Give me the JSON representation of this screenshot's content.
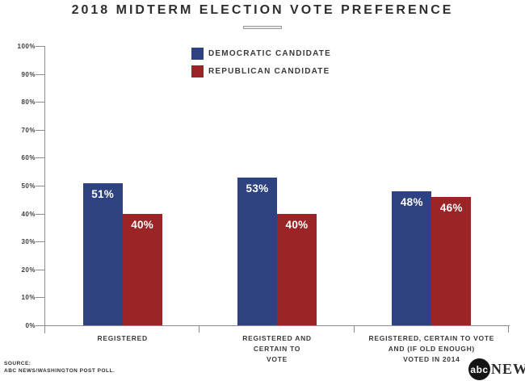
{
  "title": "2018 MIDTERM ELECTION VOTE PREFERENCE",
  "colors": {
    "democrat_blue": "#2e4181",
    "republican_red": "#9a2426",
    "axis_gray": "#8c8c8c",
    "text_dark": "#3a3a3a"
  },
  "legend": {
    "items": [
      {
        "label": "DEMOCRATIC CANDIDATE",
        "color": "#2e4181"
      },
      {
        "label": "REPUBLICAN CANDIDATE",
        "color": "#9a2426"
      }
    ]
  },
  "chart_data": {
    "type": "bar",
    "title": "2018 MIDTERM ELECTION VOTE PREFERENCE",
    "categories": [
      "REGISTERED",
      "REGISTERED AND CERTAIN TO VOTE",
      "REGISTERED, CERTAIN TO VOTE AND (IF OLD ENOUGH) VOTED IN 2014"
    ],
    "categories_multiline": [
      [
        "REGISTERED"
      ],
      [
        "REGISTERED AND",
        "CERTAIN TO",
        "VOTE"
      ],
      [
        "REGISTERED, CERTAIN TO VOTE",
        "AND (IF OLD ENOUGH)",
        "VOTED IN 2014"
      ]
    ],
    "series": [
      {
        "name": "DEMOCRATIC CANDIDATE",
        "color": "#2e4181",
        "values": [
          51,
          53,
          48
        ]
      },
      {
        "name": "REPUBLICAN CANDIDATE",
        "color": "#9a2426",
        "values": [
          40,
          40,
          46
        ]
      }
    ],
    "value_labels": [
      [
        "51%",
        "40%"
      ],
      [
        "53%",
        "40%"
      ],
      [
        "48%",
        "46%"
      ]
    ],
    "xlabel": "",
    "ylabel": "",
    "ylim": [
      0,
      100
    ],
    "yticks": [
      "100%",
      "90%",
      "80%",
      "70%",
      "60%",
      "50%",
      "40%",
      "30%",
      "20%",
      "10%",
      "0%"
    ],
    "grid": false,
    "legend_position": "top-center"
  },
  "footer": {
    "source_line1": "SOURCE:",
    "source_line2": "ABC NEWS/WASHINGTON POST POLL.",
    "logo_abc": "abc",
    "logo_news": "NEWS"
  }
}
